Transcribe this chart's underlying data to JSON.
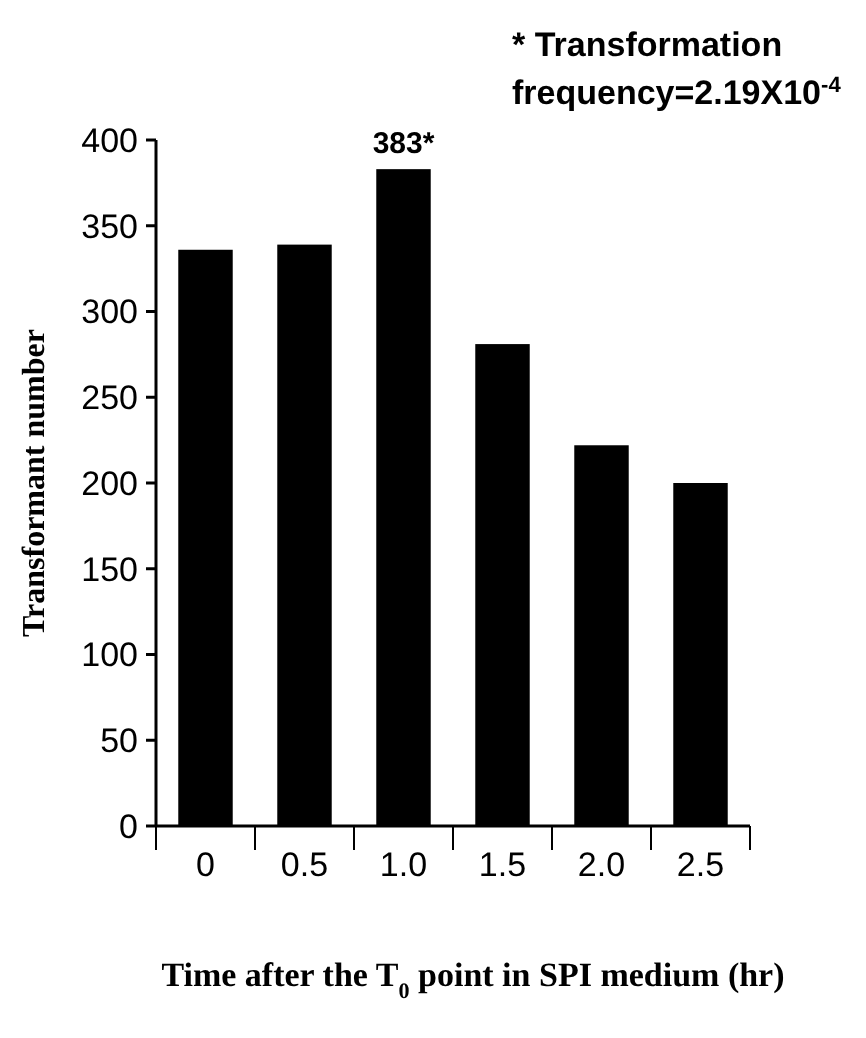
{
  "chart_data": {
    "type": "bar",
    "categories": [
      "0",
      "0.5",
      "1.0",
      "1.5",
      "2.0",
      "2.5"
    ],
    "values": [
      336,
      339,
      383,
      281,
      222,
      200
    ],
    "value_labels": [
      null,
      null,
      "383*",
      null,
      null,
      null
    ],
    "color": "#000000",
    "ylim": [
      0,
      400
    ],
    "yticks": [
      0,
      50,
      100,
      150,
      200,
      250,
      300,
      350,
      400
    ],
    "xlabel": "Time after the T$_{0}$ point in SPI medium (hr)",
    "ylabel": "Transformant number",
    "annotations": [
      "* Transformation frequency=2.19X10$^{-4}$"
    ],
    "grid": false
  }
}
